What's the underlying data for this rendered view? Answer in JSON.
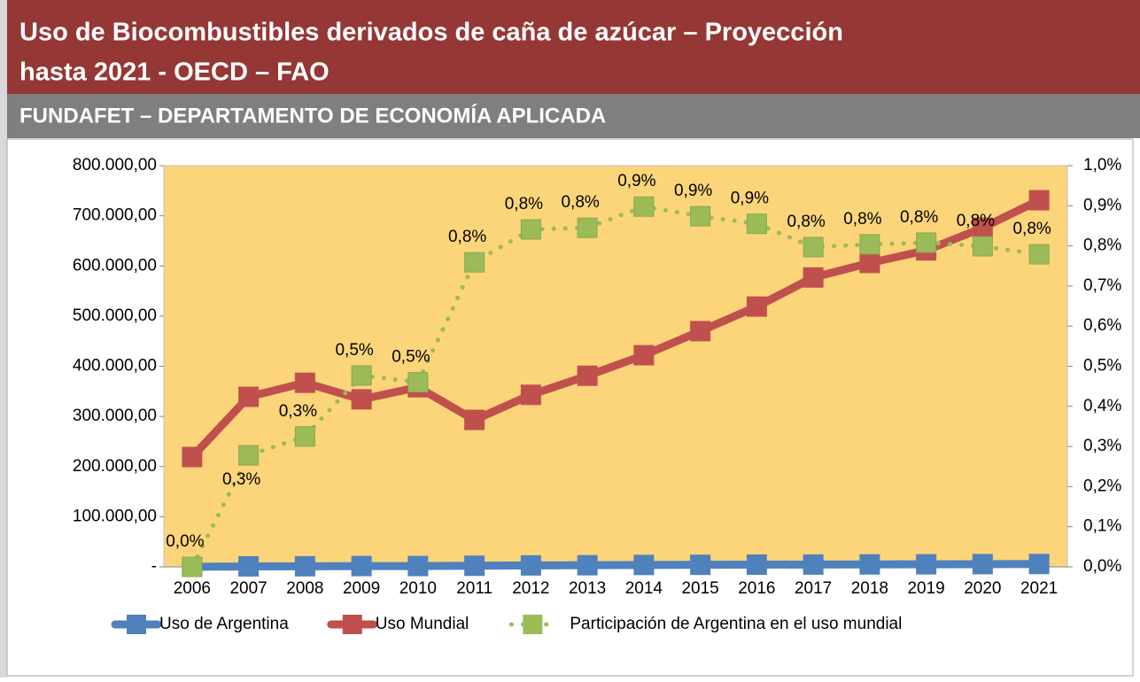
{
  "header": {
    "title_lines": [
      "Uso de Biocombustibles derivados de caña de azúcar – Proyección",
      "hasta 2021 -  OECD – FAO"
    ],
    "subtitle": "FUNDAFET – DEPARTAMENTO DE ECONOMÍA APLICADA"
  },
  "chart_data": {
    "type": "line",
    "categories": [
      "2006",
      "2007",
      "2008",
      "2009",
      "2010",
      "2011",
      "2012",
      "2013",
      "2014",
      "2015",
      "2016",
      "2017",
      "2018",
      "2019",
      "2020",
      "2021"
    ],
    "series": [
      {
        "name": "Uso de Argentina",
        "color": "#4f81bd",
        "values": [
          0,
          942,
          1193,
          1593,
          1647,
          2224,
          2885,
          3219,
          3790,
          4108,
          4437,
          4599,
          4872,
          5098,
          5401,
          5694
        ]
      },
      {
        "name": "Uso Mundial",
        "color": "#c0504d",
        "values": [
          219000,
          339000,
          367000,
          334000,
          358000,
          293000,
          343000,
          381000,
          422000,
          470000,
          519000,
          577000,
          606000,
          631000,
          676000,
          731000
        ]
      },
      {
        "name": "Participación de Argentina en el uso mundial",
        "color": "#9bbb59",
        "axis": "y2",
        "line_style": "dotted",
        "values": [
          0,
          0.278,
          0.325,
          0.477,
          0.46,
          0.759,
          0.841,
          0.845,
          0.898,
          0.874,
          0.855,
          0.797,
          0.804,
          0.808,
          0.799,
          0.779
        ],
        "value_labels": [
          "0,0%",
          "0,3%",
          "0,3%",
          "0,5%",
          "0,5%",
          "0,8%",
          "0,8%",
          "0,8%",
          "0,9%",
          "0,9%",
          "0,9%",
          "0,8%",
          "0,8%",
          "0,8%",
          "0,8%",
          "0,8%"
        ]
      }
    ],
    "ylim": [
      0,
      800000
    ],
    "yticks": [
      {
        "value": 0,
        "label": "-"
      },
      {
        "value": 100000,
        "label": "100.000,00"
      },
      {
        "value": 200000,
        "label": "200.000,00"
      },
      {
        "value": 300000,
        "label": "300.000,00"
      },
      {
        "value": 400000,
        "label": "400.000,00"
      },
      {
        "value": 500000,
        "label": "500.000,00"
      },
      {
        "value": 600000,
        "label": "600.000,00"
      },
      {
        "value": 700000,
        "label": "700.000,00"
      },
      {
        "value": 800000,
        "label": "800.000,00"
      }
    ],
    "y2lim": [
      0,
      1
    ],
    "y2ticks": [
      {
        "value": 0,
        "label": "0,0%"
      },
      {
        "value": 0.1,
        "label": "0,1%"
      },
      {
        "value": 0.2,
        "label": "0,2%"
      },
      {
        "value": 0.3,
        "label": "0,3%"
      },
      {
        "value": 0.4,
        "label": "0,4%"
      },
      {
        "value": 0.5,
        "label": "0,5%"
      },
      {
        "value": 0.6,
        "label": "0,6%"
      },
      {
        "value": 0.7,
        "label": "0,7%"
      },
      {
        "value": 0.8,
        "label": "0,8%"
      },
      {
        "value": 0.9,
        "label": "0,9%"
      },
      {
        "value": 1,
        "label": "1,0%"
      }
    ],
    "plot_background": "#fcd57a",
    "legend": "bottom"
  }
}
